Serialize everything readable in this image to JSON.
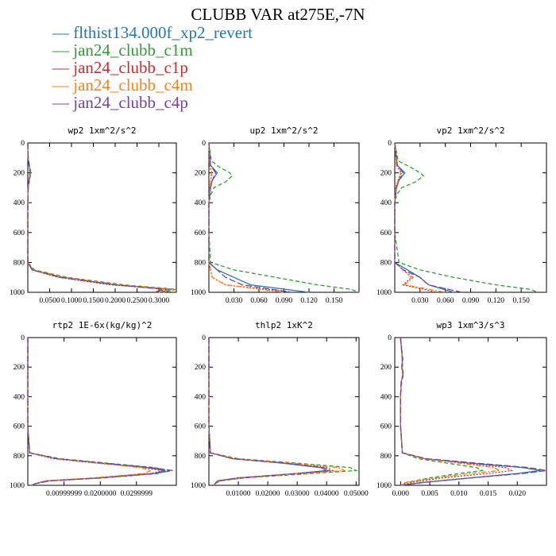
{
  "title": "CLUBB VAR at275E,-7N",
  "legend": [
    {
      "label": "flthist134.000f_xp2_revert",
      "color": "#1f77b4"
    },
    {
      "label": "jan24_clubb_c1m",
      "color": "#2ca02c"
    },
    {
      "label": "jan24_clubb_c1p",
      "color": "#d62728"
    },
    {
      "label": "jan24_clubb_c4m",
      "color": "#ff7f0e"
    },
    {
      "label": "jan24_clubb_c4p",
      "color": "#7b3fa0"
    }
  ],
  "chart_data": [
    {
      "type": "line",
      "title": "wp2   1xm^2/s^2",
      "xlim": [
        0,
        0.34
      ],
      "ylim": [
        1000,
        0
      ],
      "xticks": [
        "0.0500",
        "0.1000",
        "0.1500",
        "0.2000",
        "0.2500",
        "0.3000"
      ],
      "xtick_values": [
        0.05,
        0.1,
        0.15,
        0.2,
        0.25,
        0.3
      ],
      "yticks": [
        0,
        200,
        400,
        600,
        800,
        1000
      ],
      "series": [
        {
          "y": [
            0,
            100,
            150,
            200,
            250,
            300,
            400,
            600,
            800,
            850,
            900,
            950,
            980,
            1000
          ],
          "x": [
            0,
            0.001,
            0.003,
            0.006,
            0.003,
            0.001,
            0,
            0,
            0,
            0.01,
            0.08,
            0.2,
            0.33,
            0.3
          ]
        },
        {
          "y": [
            0,
            100,
            150,
            200,
            250,
            300,
            400,
            600,
            800,
            850,
            900,
            950,
            980,
            1000
          ],
          "x": [
            0,
            0.001,
            0.004,
            0.007,
            0.004,
            0.001,
            0,
            0,
            0,
            0.015,
            0.09,
            0.22,
            0.34,
            0.31
          ]
        },
        {
          "y": [
            0,
            100,
            150,
            200,
            250,
            300,
            400,
            600,
            800,
            850,
            900,
            950,
            980,
            1000
          ],
          "x": [
            0,
            0.001,
            0.003,
            0.005,
            0.003,
            0.001,
            0,
            0,
            0,
            0.01,
            0.07,
            0.19,
            0.32,
            0.29
          ]
        },
        {
          "y": [
            0,
            100,
            150,
            200,
            250,
            300,
            400,
            600,
            800,
            850,
            900,
            950,
            980,
            1000
          ],
          "x": [
            0,
            0.001,
            0.003,
            0.006,
            0.003,
            0.001,
            0,
            0,
            0,
            0.012,
            0.085,
            0.21,
            0.335,
            0.3
          ]
        },
        {
          "y": [
            0,
            100,
            150,
            200,
            250,
            300,
            400,
            600,
            800,
            850,
            900,
            950,
            980,
            1000
          ],
          "x": [
            0,
            0.001,
            0.003,
            0.005,
            0.003,
            0.001,
            0,
            0,
            0,
            0.01,
            0.075,
            0.2,
            0.31,
            0.29
          ]
        }
      ]
    },
    {
      "type": "line",
      "title": "up2   1xm^2/s^2",
      "xlim": [
        0,
        0.18
      ],
      "ylim": [
        1000,
        0
      ],
      "xticks": [
        "0.030",
        "0.060",
        "0.090",
        "0.120",
        "0.150"
      ],
      "xtick_values": [
        0.03,
        0.06,
        0.09,
        0.12,
        0.15
      ],
      "yticks": [
        0,
        200,
        400,
        600,
        800,
        1000
      ],
      "series": [
        {
          "y": [
            0,
            150,
            200,
            250,
            300,
            350,
            400,
            600,
            800,
            850,
            900,
            950,
            1000
          ],
          "x": [
            0,
            0.002,
            0.01,
            0.004,
            0.002,
            0.001,
            0,
            0,
            0,
            0.01,
            0.03,
            0.05,
            0.12
          ]
        },
        {
          "y": [
            0,
            120,
            160,
            200,
            220,
            260,
            300,
            350,
            400,
            600,
            800,
            850,
            900,
            950,
            980,
            1000
          ],
          "x": [
            0,
            0.003,
            0.012,
            0.025,
            0.028,
            0.02,
            0.006,
            0.002,
            0,
            0,
            0.002,
            0.03,
            0.08,
            0.13,
            0.17,
            0.18
          ]
        },
        {
          "y": [
            0,
            150,
            200,
            250,
            300,
            400,
            600,
            800,
            850,
            900,
            950,
            1000
          ],
          "x": [
            0,
            0.001,
            0.004,
            0.002,
            0.001,
            0,
            0,
            0,
            0.002,
            0.004,
            0.02,
            0.1
          ]
        },
        {
          "y": [
            0,
            150,
            200,
            250,
            300,
            400,
            600,
            800,
            850,
            900,
            950,
            1000
          ],
          "x": [
            0,
            0.001,
            0.003,
            0.002,
            0.001,
            0,
            0,
            0,
            0.002,
            0.004,
            0.02,
            0.09
          ]
        },
        {
          "y": [
            0,
            150,
            200,
            250,
            300,
            350,
            400,
            600,
            800,
            850,
            900,
            950,
            1000
          ],
          "x": [
            0,
            0.002,
            0.008,
            0.004,
            0.002,
            0.001,
            0,
            0,
            0,
            0.01,
            0.02,
            0.04,
            0.1
          ]
        }
      ]
    },
    {
      "type": "line",
      "title": "vp2   1xm^2/s^2",
      "xlim": [
        0,
        0.18
      ],
      "ylim": [
        1000,
        0
      ],
      "xticks": [
        "0.030",
        "0.060",
        "0.090",
        "0.120",
        "0.150"
      ],
      "xtick_values": [
        0.03,
        0.06,
        0.09,
        0.12,
        0.15
      ],
      "yticks": [
        0,
        200,
        400,
        600,
        800,
        1000
      ],
      "series": [
        {
          "y": [
            0,
            150,
            200,
            250,
            300,
            350,
            400,
            600,
            800,
            850,
            900,
            950,
            1000
          ],
          "x": [
            0,
            0.003,
            0.012,
            0.005,
            0.002,
            0.001,
            0,
            0,
            0,
            0.015,
            0.03,
            0.04,
            0.07
          ]
        },
        {
          "y": [
            0,
            120,
            160,
            200,
            220,
            260,
            300,
            350,
            400,
            600,
            800,
            850,
            900,
            950,
            980,
            1000
          ],
          "x": [
            0,
            0.004,
            0.018,
            0.03,
            0.034,
            0.025,
            0.008,
            0.002,
            0,
            0,
            0.005,
            0.03,
            0.07,
            0.12,
            0.16,
            0.17
          ]
        },
        {
          "y": [
            0,
            150,
            200,
            250,
            300,
            400,
            600,
            800,
            850,
            900,
            950,
            1000
          ],
          "x": [
            0,
            0.002,
            0.008,
            0.004,
            0.001,
            0,
            0,
            0,
            0.01,
            0.02,
            0.01,
            0.05
          ]
        },
        {
          "y": [
            0,
            150,
            200,
            250,
            300,
            400,
            600,
            800,
            850,
            900,
            950,
            1000
          ],
          "x": [
            0,
            0.002,
            0.007,
            0.004,
            0.001,
            0,
            0,
            0,
            0.01,
            0.022,
            0.012,
            0.06
          ]
        },
        {
          "y": [
            0,
            150,
            200,
            250,
            300,
            350,
            400,
            600,
            800,
            850,
            900,
            950,
            1000
          ],
          "x": [
            0,
            0.003,
            0.01,
            0.005,
            0.002,
            0.001,
            0,
            0,
            0,
            0.01,
            0.03,
            0.04,
            0.08
          ]
        }
      ]
    },
    {
      "type": "line",
      "title": "rtp2   1E-6x(kg/kg)^2",
      "xlim": [
        0,
        0.041
      ],
      "ylim": [
        1000,
        0
      ],
      "xticks": [
        "0.00999999",
        "0.0200000",
        "0.0299999"
      ],
      "xtick_values": [
        0.01,
        0.02,
        0.03
      ],
      "yticks": [
        0,
        200,
        400,
        600,
        800,
        1000
      ],
      "series": [
        {
          "y": [
            0,
            600,
            780,
            820,
            850,
            880,
            900,
            920,
            950,
            970,
            990,
            1000
          ],
          "x": [
            0,
            0,
            0.0005,
            0.008,
            0.02,
            0.033,
            0.038,
            0.035,
            0.02,
            0.005,
            0.002,
            0.001
          ]
        },
        {
          "y": [
            0,
            600,
            780,
            820,
            850,
            880,
            900,
            920,
            950,
            970,
            990,
            1000
          ],
          "x": [
            0,
            0,
            0.0005,
            0.009,
            0.022,
            0.035,
            0.039,
            0.036,
            0.021,
            0.006,
            0.002,
            0.001
          ]
        },
        {
          "y": [
            0,
            600,
            780,
            820,
            850,
            880,
            900,
            920,
            950,
            970,
            990,
            1000
          ],
          "x": [
            0,
            0,
            0.0005,
            0.007,
            0.019,
            0.032,
            0.037,
            0.034,
            0.019,
            0.005,
            0.002,
            0.001
          ]
        },
        {
          "y": [
            0,
            600,
            780,
            820,
            850,
            880,
            900,
            920,
            950,
            970,
            990,
            1000
          ],
          "x": [
            0,
            0,
            0.0005,
            0.008,
            0.02,
            0.031,
            0.034,
            0.032,
            0.018,
            0.005,
            0.002,
            0.001
          ]
        },
        {
          "y": [
            0,
            600,
            780,
            820,
            850,
            880,
            900,
            920,
            950,
            970,
            990,
            1000
          ],
          "x": [
            0,
            0,
            0.0005,
            0.008,
            0.021,
            0.034,
            0.04,
            0.035,
            0.02,
            0.006,
            0.002,
            0.001
          ]
        }
      ]
    },
    {
      "type": "line",
      "title": "thlp2   1xK^2",
      "xlim": [
        0,
        0.051
      ],
      "ylim": [
        1000,
        0
      ],
      "xticks": [
        "0.01000",
        "0.02000",
        "0.03000",
        "0.04000",
        "0.05000"
      ],
      "xtick_values": [
        0.01,
        0.02,
        0.03,
        0.04,
        0.05
      ],
      "yticks": [
        0,
        200,
        400,
        600,
        800,
        1000
      ],
      "series": [
        {
          "y": [
            0,
            600,
            780,
            820,
            850,
            880,
            900,
            920,
            950,
            970,
            990,
            1000
          ],
          "x": [
            0,
            0,
            0.0005,
            0.008,
            0.025,
            0.038,
            0.04,
            0.03,
            0.01,
            0.003,
            0.002,
            0.002
          ]
        },
        {
          "y": [
            0,
            600,
            780,
            820,
            850,
            880,
            900,
            920,
            950,
            970,
            990,
            1000
          ],
          "x": [
            0,
            0,
            0.0005,
            0.01,
            0.03,
            0.048,
            0.05,
            0.035,
            0.012,
            0.004,
            0.002,
            0.002
          ]
        },
        {
          "y": [
            0,
            600,
            780,
            820,
            850,
            880,
            900,
            920,
            950,
            970,
            990,
            1000
          ],
          "x": [
            0,
            0,
            0.0005,
            0.009,
            0.027,
            0.04,
            0.042,
            0.03,
            0.01,
            0.003,
            0.002,
            0.002
          ]
        },
        {
          "y": [
            0,
            600,
            780,
            820,
            850,
            880,
            900,
            920,
            950,
            970,
            990,
            1000
          ],
          "x": [
            0,
            0,
            0.0005,
            0.009,
            0.028,
            0.044,
            0.046,
            0.032,
            0.011,
            0.004,
            0.002,
            0.002
          ]
        },
        {
          "y": [
            0,
            600,
            780,
            820,
            850,
            880,
            900,
            920,
            950,
            970,
            990,
            1000
          ],
          "x": [
            0,
            0,
            0.0005,
            0.008,
            0.026,
            0.039,
            0.041,
            0.03,
            0.01,
            0.003,
            0.002,
            0.002
          ]
        }
      ]
    },
    {
      "type": "line",
      "title": "wp3   1xm^3/s^3",
      "xlim": [
        -0.001,
        0.025
      ],
      "ylim": [
        1000,
        0
      ],
      "xticks": [
        "0.000",
        "0.005",
        "0.010",
        "0.015",
        "0.020"
      ],
      "xtick_values": [
        0,
        0.005,
        0.01,
        0.015,
        0.02
      ],
      "yticks": [
        0,
        200,
        400,
        600,
        800,
        1000
      ],
      "series": [
        {
          "y": [
            0,
            150,
            200,
            250,
            300,
            400,
            600,
            780,
            820,
            850,
            880,
            900,
            920,
            950,
            980,
            1000
          ],
          "x": [
            0,
            0.0003,
            0.0002,
            0.0004,
            0.0001,
            0,
            0,
            0.0003,
            0.004,
            0.012,
            0.021,
            0.024,
            0.02,
            0.012,
            0.004,
            0
          ]
        },
        {
          "y": [
            0,
            150,
            200,
            250,
            300,
            400,
            600,
            780,
            820,
            850,
            880,
            900,
            920,
            950,
            980,
            1000
          ],
          "x": [
            0,
            0.0004,
            0.0003,
            0.0005,
            0.0002,
            0,
            0,
            0.0003,
            0.003,
            0.008,
            0.013,
            0.014,
            0.01,
            0.005,
            0.001,
            0
          ]
        },
        {
          "y": [
            0,
            150,
            200,
            250,
            300,
            400,
            600,
            780,
            820,
            850,
            880,
            900,
            920,
            950,
            980,
            1000
          ],
          "x": [
            0,
            0.0003,
            0.0002,
            0.0004,
            0.0001,
            0,
            0,
            0.0003,
            0.004,
            0.011,
            0.018,
            0.019,
            0.015,
            0.007,
            0.002,
            0
          ]
        },
        {
          "y": [
            0,
            150,
            200,
            250,
            300,
            400,
            600,
            780,
            820,
            850,
            880,
            900,
            920,
            950,
            980,
            1000
          ],
          "x": [
            0,
            0.0003,
            0.0002,
            0.0004,
            0.0001,
            0,
            0,
            0.0003,
            0.004,
            0.01,
            0.016,
            0.017,
            0.012,
            0.006,
            0.001,
            0
          ]
        },
        {
          "y": [
            0,
            150,
            200,
            250,
            300,
            400,
            600,
            780,
            820,
            850,
            880,
            900,
            920,
            950,
            980,
            1000
          ],
          "x": [
            0,
            0.0003,
            0.0002,
            0.0004,
            0.0001,
            0,
            0,
            0.0003,
            0.0045,
            0.013,
            0.022,
            0.025,
            0.021,
            0.012,
            0.004,
            0
          ]
        }
      ]
    }
  ]
}
